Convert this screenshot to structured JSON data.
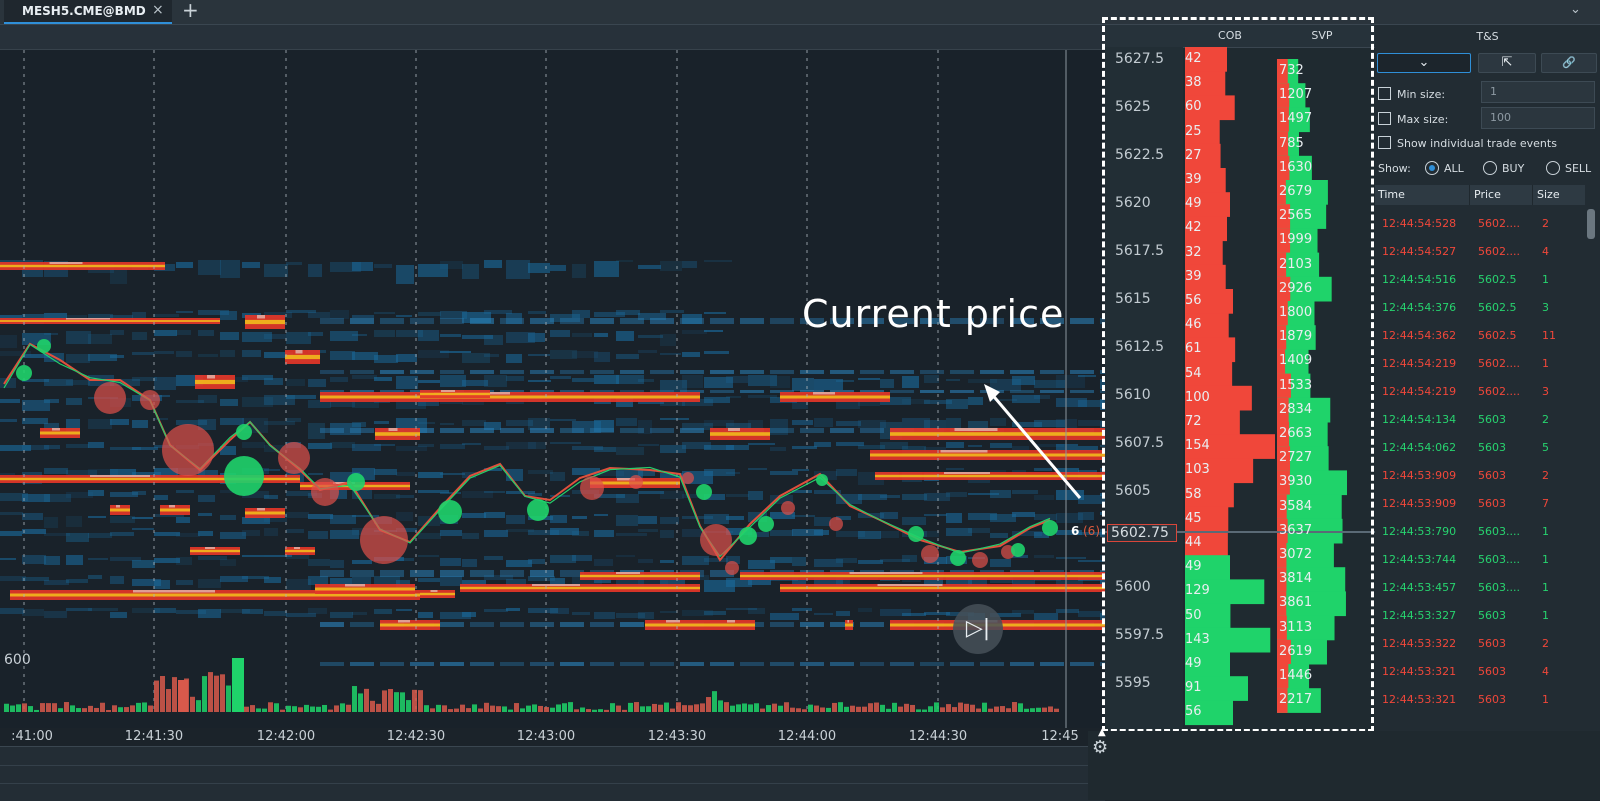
{
  "tab": {
    "label": "MESH5.CME@BMD",
    "close_glyph": "×",
    "add_glyph": "+",
    "menu_glyph": "⌄"
  },
  "colors": {
    "buy": "#1fd36a",
    "sell": "#f0473a",
    "background": "#1b232a",
    "accent": "#2f8fd8",
    "heat_blue": "#1a6a9c",
    "heat_yellow": "#f2c21b",
    "heat_red": "#e33628"
  },
  "chart": {
    "annotation": "Current price",
    "side_label": "600",
    "last_trade_size": "6",
    "last_trade_paren": "(6)",
    "play_icon": "play-step-icon",
    "x_ticks": [
      ":41:00",
      "12:41:30",
      "12:42:00",
      "12:42:30",
      "12:43:00",
      "12:43:30",
      "12:44:00",
      "12:44:30",
      "12:45"
    ]
  },
  "ladder": {
    "cob_header": "COB",
    "svp_header": "SVP",
    "current_price": "5602.75",
    "price_labels": [
      "5627.5",
      "5625",
      "5622.5",
      "5620",
      "5617.5",
      "5615",
      "5612.5",
      "5610",
      "5607.5",
      "5605",
      "5602.75",
      "5600",
      "5597.5",
      "5595"
    ],
    "cob_values": [
      "42",
      "38",
      "60",
      "25",
      "27",
      "39",
      "49",
      "42",
      "32",
      "39",
      "56",
      "46",
      "61",
      "54",
      "100",
      "72",
      "154",
      "103",
      "58",
      "45",
      "44",
      "49",
      "129",
      "50",
      "143",
      "49",
      "91",
      "56"
    ],
    "svp_values": [
      "732",
      "1207",
      "1497",
      "785",
      "1630",
      "2679",
      "2565",
      "1999",
      "2103",
      "2926",
      "1800",
      "1879",
      "1409",
      "1533",
      "2834",
      "2663",
      "2727",
      "3930",
      "3584",
      "3637",
      "3072",
      "3814",
      "3861",
      "3113",
      "2619",
      "1446",
      "2217"
    ]
  },
  "ts": {
    "title": "T&S",
    "dropdown_glyph": "⌄",
    "export_glyph": "⇱",
    "link_glyph": "🔗",
    "min_size_label": "Min size:",
    "min_size_value": "1",
    "max_size_label": "Max size:",
    "max_size_value": "100",
    "individual_label": "Show individual trade events",
    "show_label": "Show:",
    "radio": {
      "all": "ALL",
      "buy": "BUY",
      "sell": "SELL"
    },
    "columns": {
      "time": "Time",
      "price": "Price",
      "size": "Size"
    },
    "rows": [
      {
        "time": "12:44:54:528",
        "price": "5602....",
        "size": "2",
        "side": "sell"
      },
      {
        "time": "12:44:54:527",
        "price": "5602....",
        "size": "4",
        "side": "sell"
      },
      {
        "time": "12:44:54:516",
        "price": "5602.5",
        "size": "1",
        "side": "buy"
      },
      {
        "time": "12:44:54:376",
        "price": "5602.5",
        "size": "3",
        "side": "buy"
      },
      {
        "time": "12:44:54:362",
        "price": "5602.5",
        "size": "11",
        "side": "sell"
      },
      {
        "time": "12:44:54:219",
        "price": "5602....",
        "size": "1",
        "side": "sell"
      },
      {
        "time": "12:44:54:219",
        "price": "5602....",
        "size": "3",
        "side": "sell"
      },
      {
        "time": "12:44:54:134",
        "price": "5603",
        "size": "2",
        "side": "buy"
      },
      {
        "time": "12:44:54:062",
        "price": "5603",
        "size": "5",
        "side": "buy"
      },
      {
        "time": "12:44:53:909",
        "price": "5603",
        "size": "2",
        "side": "sell"
      },
      {
        "time": "12:44:53:909",
        "price": "5603",
        "size": "7",
        "side": "sell"
      },
      {
        "time": "12:44:53:790",
        "price": "5603....",
        "size": "1",
        "side": "buy"
      },
      {
        "time": "12:44:53:744",
        "price": "5603....",
        "size": "1",
        "side": "buy"
      },
      {
        "time": "12:44:53:457",
        "price": "5603....",
        "size": "1",
        "side": "buy"
      },
      {
        "time": "12:44:53:327",
        "price": "5603",
        "size": "1",
        "side": "buy"
      },
      {
        "time": "12:44:53:322",
        "price": "5603",
        "size": "2",
        "side": "sell"
      },
      {
        "time": "12:44:53:321",
        "price": "5603",
        "size": "4",
        "side": "sell"
      },
      {
        "time": "12:44:53:321",
        "price": "5603",
        "size": "1",
        "side": "sell"
      }
    ]
  },
  "footer": {
    "gear_icon": "gear-icon"
  }
}
